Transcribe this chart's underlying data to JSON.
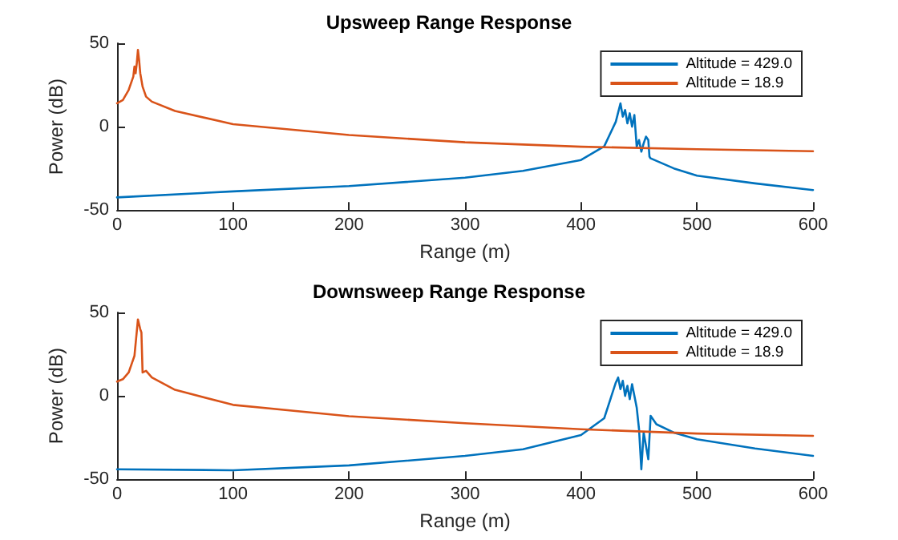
{
  "chart_data": [
    {
      "type": "line",
      "title": "Upsweep Range Response",
      "xlabel": "Range (m)",
      "ylabel": "Power (dB)",
      "xlim": [
        0,
        600
      ],
      "xticks": [
        0,
        100,
        200,
        300,
        400,
        500,
        600
      ],
      "ylim": [
        -50,
        50
      ],
      "yticks": [
        -50,
        0,
        50
      ],
      "grid": false,
      "legend": "top right",
      "marker": "none",
      "line_style": "solid",
      "series": [
        {
          "name": "Altitude = 429.0",
          "color": "#0072bd",
          "x": [
            0,
            100,
            200,
            300,
            350,
            400,
            420,
            430,
            434,
            436,
            438,
            440,
            442,
            444,
            446,
            448,
            450,
            452,
            454,
            456,
            458,
            459,
            460,
            480,
            500,
            550,
            600
          ],
          "values": [
            -42.4,
            -38.8,
            -35.6,
            -30.6,
            -26.5,
            -20,
            -11.8,
            3,
            14,
            6,
            10,
            2,
            8,
            0,
            7,
            -12,
            -8,
            -15,
            -10,
            -6,
            -8,
            -18,
            -19,
            -25,
            -29.4,
            -34,
            -38
          ]
        },
        {
          "name": "Altitude = 18.9",
          "color": "#d95319",
          "x": [
            0,
            5,
            10,
            14,
            15,
            16,
            17,
            18,
            19,
            20,
            22,
            25,
            30,
            50,
            100,
            200,
            300,
            400,
            500,
            600
          ],
          "values": [
            14,
            16,
            22,
            30,
            36,
            32,
            38,
            46,
            40,
            32,
            24,
            18,
            15,
            9.4,
            1.5,
            -5,
            -9.4,
            -12,
            -13.5,
            -14.7
          ]
        }
      ]
    },
    {
      "type": "line",
      "title": "Downsweep Range Response",
      "xlabel": "Range (m)",
      "ylabel": "Power (dB)",
      "xlim": [
        0,
        600
      ],
      "xticks": [
        0,
        100,
        200,
        300,
        400,
        500,
        600
      ],
      "ylim": [
        -50,
        50
      ],
      "yticks": [
        -50,
        0,
        50
      ],
      "grid": false,
      "legend": "top right",
      "marker": "none",
      "line_style": "solid",
      "series": [
        {
          "name": "Altitude = 429.0",
          "color": "#0072bd",
          "x": [
            0,
            100,
            200,
            300,
            350,
            400,
            420,
            430,
            432,
            434,
            436,
            438,
            440,
            442,
            444,
            446,
            448,
            450,
            452,
            454,
            456,
            458,
            460,
            465,
            480,
            500,
            550,
            600
          ],
          "values": [
            -44,
            -44.6,
            -41.7,
            -36,
            -32,
            -23.5,
            -13.4,
            8,
            11,
            4,
            9,
            0,
            6,
            -2,
            7,
            0,
            -7,
            -20,
            -44,
            -22,
            -30,
            -38,
            -12,
            -17,
            -22,
            -26,
            -31.5,
            -36
          ]
        },
        {
          "name": "Altitude = 18.9",
          "color": "#d95319",
          "x": [
            0,
            5,
            10,
            15,
            18,
            20,
            21,
            22,
            25,
            30,
            50,
            100,
            200,
            300,
            400,
            500,
            600
          ],
          "values": [
            8.6,
            10,
            14,
            24,
            45.8,
            40,
            38,
            14,
            15,
            11,
            3.6,
            -5.4,
            -12.2,
            -16.4,
            -20,
            -22.6,
            -24
          ]
        }
      ]
    }
  ]
}
